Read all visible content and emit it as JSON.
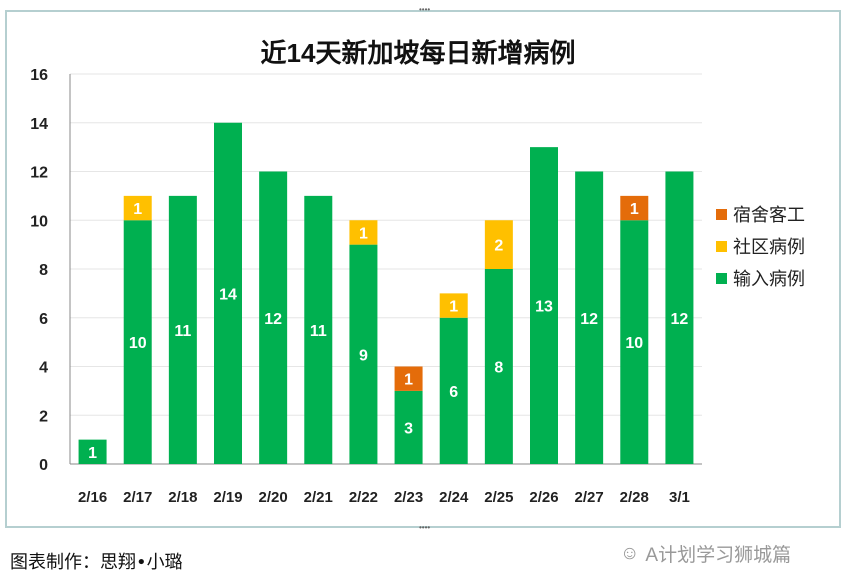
{
  "chart_data": {
    "type": "bar",
    "stacked": true,
    "title": "近14天新加坡每日新增病例",
    "categories": [
      "2/16",
      "2/17",
      "2/18",
      "2/19",
      "2/20",
      "2/21",
      "2/22",
      "2/23",
      "2/24",
      "2/25",
      "2/26",
      "2/27",
      "2/28",
      "3/1"
    ],
    "series": [
      {
        "name": "输入病例",
        "color": "#00b050",
        "values": [
          1,
          10,
          11,
          14,
          12,
          11,
          9,
          3,
          6,
          8,
          13,
          12,
          10,
          12
        ]
      },
      {
        "name": "宿舍客工",
        "color": "#e46c0a",
        "values": [
          0,
          0,
          0,
          0,
          0,
          0,
          0,
          1,
          0,
          0,
          0,
          0,
          1,
          0
        ]
      },
      {
        "name": "社区病例",
        "color": "#ffc000",
        "values": [
          0,
          1,
          0,
          0,
          0,
          0,
          1,
          0,
          1,
          2,
          0,
          0,
          0,
          0
        ]
      }
    ],
    "legend_order": [
      "宿舍客工",
      "社区病例",
      "输入病例"
    ],
    "legend_position": "right",
    "ylim": [
      0,
      16
    ],
    "yticks": [
      0,
      2,
      4,
      6,
      8,
      10,
      12,
      14,
      16
    ],
    "grid": true,
    "data_labels": true
  },
  "caption": "图表制作：思翔•小璐",
  "watermark": "A计划学习狮城篇"
}
